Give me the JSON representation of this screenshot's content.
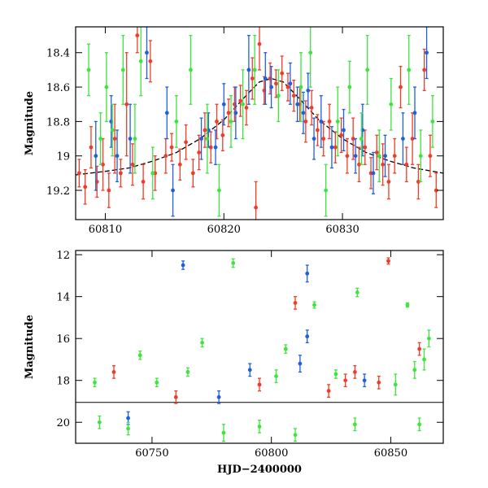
{
  "chart_data": [
    {
      "type": "scatter",
      "xlabel": "",
      "ylabel": "Magnitude",
      "xlim": [
        60807.5,
        60838.5
      ],
      "ylim": [
        19.37,
        18.25
      ],
      "y_inverted": true,
      "x_ticks": [
        60810,
        60820,
        60830
      ],
      "x_tick_labels": [
        "60810",
        "60820",
        "60830"
      ],
      "y_ticks": [
        18.4,
        18.6,
        18.8,
        19.0,
        19.2
      ],
      "y_tick_labels": [
        "18.4",
        "18.6",
        "18.8",
        "19",
        "19.2"
      ],
      "model_curve": {
        "color": "#000000",
        "style": "dashed",
        "points": [
          [
            60807.5,
            19.11
          ],
          [
            60810,
            19.09
          ],
          [
            60812,
            19.07
          ],
          [
            60814,
            19.03
          ],
          [
            60816,
            18.98
          ],
          [
            60818,
            18.9
          ],
          [
            60820,
            18.79
          ],
          [
            60822,
            18.64
          ],
          [
            60823,
            18.57
          ],
          [
            60824,
            18.55
          ],
          [
            60825,
            18.57
          ],
          [
            60826,
            18.64
          ],
          [
            60828,
            18.79
          ],
          [
            60830,
            18.9
          ],
          [
            60832,
            18.98
          ],
          [
            60834,
            19.03
          ],
          [
            60836,
            19.07
          ],
          [
            60838.5,
            19.1
          ]
        ]
      },
      "series": [
        {
          "color": "#f03c28",
          "points": [
            [
              60807.8,
              19.1,
              0.08
            ],
            [
              60808.3,
              19.18,
              0.1
            ],
            [
              60808.8,
              18.95,
              0.12
            ],
            [
              60809.3,
              19.15,
              0.09
            ],
            [
              60809.8,
              19.05,
              0.15
            ],
            [
              60810.3,
              19.2,
              0.1
            ],
            [
              60810.8,
              18.9,
              0.2
            ],
            [
              60811.3,
              19.1,
              0.08
            ],
            [
              60811.8,
              18.7,
              0.3
            ],
            [
              60812.3,
              19.05,
              0.12
            ],
            [
              60812.7,
              18.3,
              0.1
            ],
            [
              60813.2,
              19.15,
              0.1
            ],
            [
              60813.8,
              18.45,
              0.12
            ],
            [
              60814.2,
              19.1,
              0.1
            ],
            [
              60815.1,
              19.0,
              0.1
            ],
            [
              60815.6,
              18.95,
              0.08
            ],
            [
              60816.3,
              19.05,
              0.09
            ],
            [
              60816.8,
              18.92,
              0.1
            ],
            [
              60817.4,
              19.1,
              0.08
            ],
            [
              60817.9,
              18.98,
              0.1
            ],
            [
              60818.4,
              18.85,
              0.1
            ],
            [
              60818.9,
              18.95,
              0.09
            ],
            [
              60819.4,
              18.8,
              0.1
            ],
            [
              60819.9,
              18.88,
              0.09
            ],
            [
              60820.4,
              18.75,
              0.08
            ],
            [
              60820.9,
              18.7,
              0.1
            ],
            [
              60821.4,
              18.68,
              0.09
            ],
            [
              60821.9,
              18.72,
              0.1
            ],
            [
              60822.4,
              18.55,
              0.12
            ],
            [
              60822.7,
              19.3,
              0.15
            ],
            [
              60823.0,
              18.35,
              0.15
            ],
            [
              60823.4,
              18.62,
              0.08
            ],
            [
              60823.9,
              18.55,
              0.09
            ],
            [
              60824.4,
              18.58,
              0.08
            ],
            [
              60824.9,
              18.52,
              0.1
            ],
            [
              60825.4,
              18.6,
              0.08
            ],
            [
              60825.9,
              18.65,
              0.09
            ],
            [
              60826.4,
              18.7,
              0.1
            ],
            [
              60826.9,
              18.8,
              0.12
            ],
            [
              60827.4,
              18.72,
              0.1
            ],
            [
              60827.9,
              18.85,
              0.09
            ],
            [
              60828.4,
              18.9,
              0.1
            ],
            [
              60828.9,
              18.8,
              0.1
            ],
            [
              60829.4,
              18.95,
              0.09
            ],
            [
              60829.9,
              18.88,
              0.1
            ],
            [
              60830.4,
              19.0,
              0.1
            ],
            [
              60830.9,
              18.9,
              0.12
            ],
            [
              60831.4,
              19.05,
              0.1
            ],
            [
              60831.9,
              18.95,
              0.1
            ],
            [
              60832.4,
              19.1,
              0.09
            ],
            [
              60832.9,
              18.98,
              0.1
            ],
            [
              60833.4,
              19.05,
              0.12
            ],
            [
              60833.9,
              19.15,
              0.1
            ],
            [
              60834.4,
              19.0,
              0.1
            ],
            [
              60834.9,
              18.6,
              0.12
            ],
            [
              60835.4,
              19.05,
              0.1
            ],
            [
              60835.9,
              18.9,
              0.15
            ],
            [
              60836.4,
              19.15,
              0.1
            ],
            [
              60836.9,
              18.5,
              0.12
            ],
            [
              60837.4,
              19.0,
              0.12
            ],
            [
              60837.9,
              19.2,
              0.1
            ]
          ]
        },
        {
          "color": "#1f5fe0",
          "points": [
            [
              60809.2,
              19.0,
              0.2
            ],
            [
              60810.5,
              18.8,
              0.15
            ],
            [
              60811.0,
              19.0,
              0.15
            ],
            [
              60812.1,
              18.9,
              0.2
            ],
            [
              60813.5,
              18.4,
              0.15
            ],
            [
              60815.2,
              18.75,
              0.15
            ],
            [
              60815.7,
              19.2,
              0.15
            ],
            [
              60818.1,
              18.9,
              0.12
            ],
            [
              60818.7,
              18.85,
              0.1
            ],
            [
              60819.3,
              18.95,
              0.1
            ],
            [
              60820.0,
              18.7,
              0.12
            ],
            [
              60821.0,
              18.75,
              0.15
            ],
            [
              60822.1,
              18.5,
              0.2
            ],
            [
              60823.5,
              18.55,
              0.15
            ],
            [
              60824.0,
              18.6,
              0.12
            ],
            [
              60825.6,
              18.58,
              0.12
            ],
            [
              60826.2,
              18.7,
              0.1
            ],
            [
              60826.7,
              18.75,
              0.12
            ],
            [
              60827.1,
              18.62,
              0.1
            ],
            [
              60827.6,
              18.9,
              0.12
            ],
            [
              60828.2,
              18.8,
              0.15
            ],
            [
              60829.1,
              18.95,
              0.12
            ],
            [
              60830.1,
              18.85,
              0.12
            ],
            [
              60831.1,
              19.0,
              0.1
            ],
            [
              60831.7,
              18.85,
              0.15
            ],
            [
              60832.6,
              19.1,
              0.12
            ],
            [
              60833.6,
              19.0,
              0.12
            ],
            [
              60835.1,
              18.9,
              0.15
            ],
            [
              60836.1,
              18.75,
              0.15
            ],
            [
              60837.1,
              18.4,
              0.15
            ]
          ]
        },
        {
          "color": "#3ce63c",
          "points": [
            [
              60808.6,
              18.5,
              0.15
            ],
            [
              60809.6,
              18.9,
              0.15
            ],
            [
              60810.1,
              18.6,
              0.2
            ],
            [
              60810.6,
              18.85,
              0.15
            ],
            [
              60811.5,
              18.5,
              0.2
            ],
            [
              60812.5,
              18.9,
              0.2
            ],
            [
              60813.0,
              18.45,
              0.2
            ],
            [
              60814.0,
              19.1,
              0.15
            ],
            [
              60816.0,
              18.8,
              0.15
            ],
            [
              60817.2,
              18.5,
              0.2
            ],
            [
              60818.6,
              18.9,
              0.2
            ],
            [
              60819.6,
              19.2,
              0.15
            ],
            [
              60820.6,
              18.8,
              0.15
            ],
            [
              60821.6,
              18.7,
              0.2
            ],
            [
              60822.6,
              18.5,
              0.2
            ],
            [
              60824.6,
              18.65,
              0.15
            ],
            [
              60826.5,
              18.6,
              0.2
            ],
            [
              60827.3,
              18.4,
              0.2
            ],
            [
              60828.6,
              19.2,
              0.15
            ],
            [
              60829.6,
              18.8,
              0.2
            ],
            [
              60830.6,
              18.6,
              0.15
            ],
            [
              60831.6,
              18.9,
              0.15
            ],
            [
              60832.1,
              18.5,
              0.2
            ],
            [
              60833.1,
              19.0,
              0.15
            ],
            [
              60834.1,
              18.7,
              0.15
            ],
            [
              60835.6,
              18.5,
              0.2
            ],
            [
              60836.6,
              19.0,
              0.15
            ],
            [
              60837.6,
              18.8,
              0.15
            ]
          ]
        }
      ]
    },
    {
      "type": "scatter",
      "xlabel": "HJD−2400000",
      "ylabel": "Magnitude",
      "xlim": [
        60718,
        60872
      ],
      "ylim": [
        21.0,
        11.8
      ],
      "y_inverted": true,
      "x_ticks": [
        60750,
        60800,
        60850
      ],
      "x_tick_labels": [
        "60750",
        "60800",
        "60850"
      ],
      "y_ticks": [
        12,
        14,
        16,
        18,
        20
      ],
      "y_tick_labels": [
        "12",
        "14",
        "16",
        "18",
        "20"
      ],
      "reference_line": 19.05,
      "series": [
        {
          "color": "#f03c28",
          "points": [
            [
              60734,
              17.6,
              0.3
            ],
            [
              60810,
              14.3,
              0.3
            ],
            [
              60849,
              12.3,
              0.15
            ],
            [
              60862,
              16.5,
              0.3
            ],
            [
              60824,
              18.5,
              0.3
            ],
            [
              60831,
              18.0,
              0.3
            ],
            [
              60835,
              17.6,
              0.3
            ],
            [
              60845,
              18.1,
              0.3
            ],
            [
              60795,
              18.2,
              0.3
            ],
            [
              60760,
              18.8,
              0.3
            ]
          ]
        },
        {
          "color": "#1f5fe0",
          "points": [
            [
              60763,
              12.5,
              0.2
            ],
            [
              60815,
              12.9,
              0.4
            ],
            [
              60815,
              15.9,
              0.3
            ],
            [
              60812,
              17.2,
              0.4
            ],
            [
              60791,
              17.5,
              0.3
            ],
            [
              60839,
              18.0,
              0.3
            ],
            [
              60740,
              19.8,
              0.3
            ],
            [
              60778,
              18.8,
              0.3
            ]
          ]
        },
        {
          "color": "#3ce63c",
          "points": [
            [
              60784,
              12.4,
              0.2
            ],
            [
              60836,
              13.8,
              0.2
            ],
            [
              60818,
              14.4,
              0.15
            ],
            [
              60857,
              14.4,
              0.1
            ],
            [
              60866,
              16.0,
              0.4
            ],
            [
              60864,
              17.0,
              0.5
            ],
            [
              60745,
              16.8,
              0.2
            ],
            [
              60771,
              16.2,
              0.2
            ],
            [
              60806,
              16.5,
              0.2
            ],
            [
              60802,
              17.8,
              0.3
            ],
            [
              60726,
              18.1,
              0.2
            ],
            [
              60752,
              18.1,
              0.2
            ],
            [
              60765,
              17.6,
              0.2
            ],
            [
              60827,
              17.7,
              0.2
            ],
            [
              60860,
              17.5,
              0.4
            ],
            [
              60852,
              18.2,
              0.5
            ],
            [
              60835,
              20.1,
              0.3
            ],
            [
              60780,
              20.5,
              0.4
            ],
            [
              60795,
              20.2,
              0.3
            ],
            [
              60740,
              20.3,
              0.3
            ],
            [
              60810,
              20.6,
              0.3
            ],
            [
              60862,
              20.1,
              0.3
            ],
            [
              60728,
              20.0,
              0.3
            ]
          ]
        }
      ]
    }
  ]
}
